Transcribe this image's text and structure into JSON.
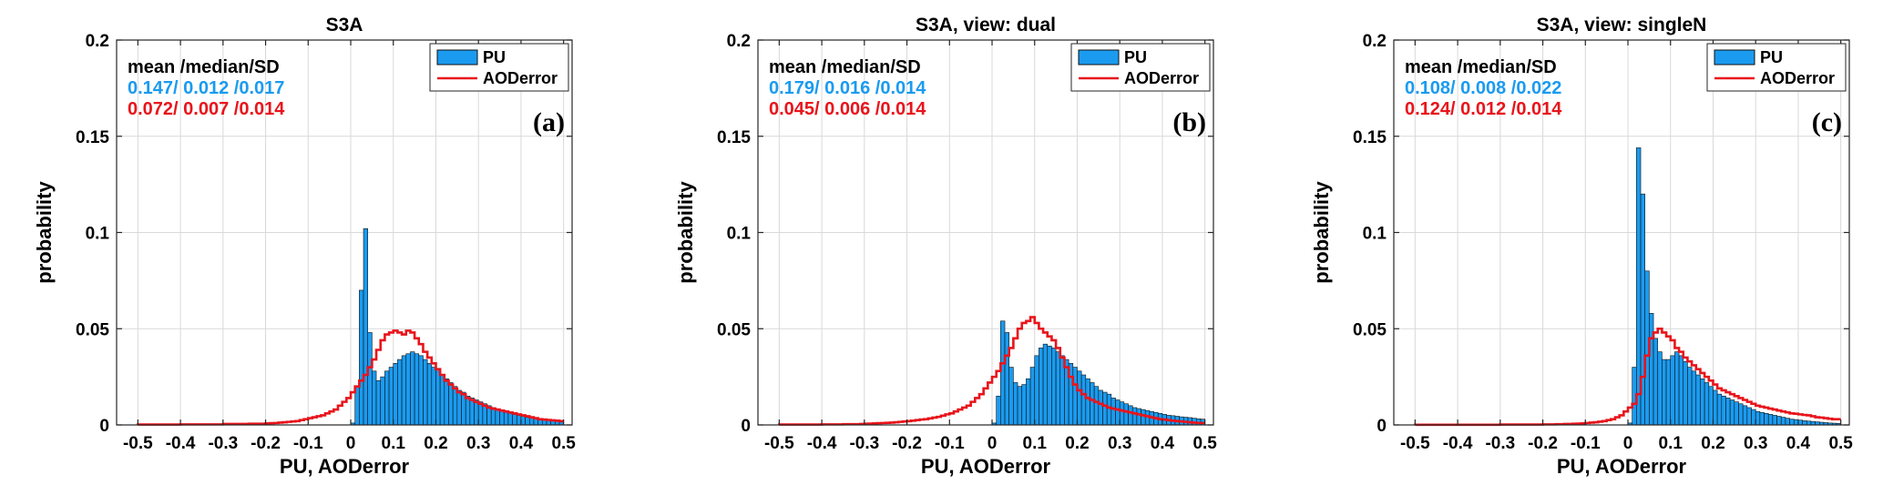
{
  "colors": {
    "pu_fill": "#1a9bf0",
    "aod_line": "#e8141b",
    "pu_stats": "#1a9bf0",
    "aod_stats": "#e8141b",
    "grid": "#d9d9d9",
    "axis": "#262626"
  },
  "chart_data": [
    {
      "type": "bar",
      "panel": "left",
      "title": "S3A",
      "xlabel": "PU, AODerror",
      "ylabel": "probability",
      "xlim": [
        -0.55,
        0.52
      ],
      "ylim": [
        0,
        0.2
      ],
      "xticks": [
        -0.5,
        -0.4,
        -0.3,
        -0.2,
        -0.1,
        0,
        0.1,
        0.2,
        0.3,
        0.4,
        0.5
      ],
      "xtick_labels": [
        "-0.5",
        "-0.4",
        "-0.3",
        "-0.2",
        "-0.1",
        "0",
        "0.1",
        "0.2",
        "0.3",
        "0.4",
        "0.5"
      ],
      "yticks": [
        0,
        0.05,
        0.1,
        0.15,
        0.2
      ],
      "ytick_labels": [
        "0",
        "0.05",
        "0.1",
        "0.15",
        "0.2"
      ],
      "grid": true,
      "legend_position": "top-right",
      "panel_label": "(a)",
      "stats_header": "mean /median/SD",
      "stats_pu": "0.147/  0.012  /0.017",
      "stats_aod": "0.072/  0.007  /0.014",
      "series": [
        {
          "name": "PU",
          "kind": "histogram-filled",
          "color": "#1a9bf0",
          "bin_start": 0.0,
          "bin_width": 0.01,
          "values": [
            0.001,
            0.02,
            0.07,
            0.102,
            0.048,
            0.028,
            0.023,
            0.025,
            0.028,
            0.03,
            0.032,
            0.034,
            0.036,
            0.037,
            0.038,
            0.037,
            0.036,
            0.034,
            0.032,
            0.03,
            0.028,
            0.026,
            0.024,
            0.022,
            0.02,
            0.018,
            0.017,
            0.015,
            0.014,
            0.013,
            0.012,
            0.011,
            0.01,
            0.009,
            0.008,
            0.007,
            0.0065,
            0.006,
            0.0055,
            0.005,
            0.0045,
            0.004,
            0.0037,
            0.0034,
            0.003,
            0.0028,
            0.0025,
            0.0022,
            0.002,
            0.0015
          ]
        },
        {
          "name": "AODerror",
          "kind": "histogram-step",
          "color": "#e8141b",
          "bin_start": -0.5,
          "bin_width": 0.01,
          "values": [
            0.0002,
            0.0002,
            0.0002,
            0.0002,
            0.0002,
            0.0002,
            0.0002,
            0.0002,
            0.0002,
            0.0002,
            0.0003,
            0.0003,
            0.0003,
            0.0003,
            0.0003,
            0.0003,
            0.0003,
            0.0003,
            0.0003,
            0.0003,
            0.0005,
            0.0005,
            0.0005,
            0.0005,
            0.0005,
            0.0005,
            0.0006,
            0.0006,
            0.0006,
            0.0006,
            0.0008,
            0.0009,
            0.001,
            0.0012,
            0.0014,
            0.0016,
            0.0018,
            0.002,
            0.0025,
            0.003,
            0.0035,
            0.004,
            0.0045,
            0.005,
            0.006,
            0.007,
            0.008,
            0.01,
            0.012,
            0.014,
            0.017,
            0.02,
            0.023,
            0.026,
            0.03,
            0.034,
            0.039,
            0.044,
            0.047,
            0.048,
            0.049,
            0.048,
            0.047,
            0.049,
            0.048,
            0.045,
            0.042,
            0.038,
            0.035,
            0.032,
            0.029,
            0.026,
            0.023,
            0.021,
            0.019,
            0.017,
            0.016,
            0.014,
            0.013,
            0.012,
            0.011,
            0.01,
            0.009,
            0.0085,
            0.008,
            0.0075,
            0.007,
            0.0065,
            0.006,
            0.0055,
            0.005,
            0.0045,
            0.004,
            0.0035,
            0.003,
            0.0028,
            0.0026,
            0.0024,
            0.0022,
            0.002
          ]
        }
      ]
    },
    {
      "type": "bar",
      "panel": "middle",
      "title": "S3A, view: dual",
      "xlabel": "PU, AODerror",
      "ylabel": "probability",
      "xlim": [
        -0.55,
        0.52
      ],
      "ylim": [
        0,
        0.2
      ],
      "xticks": [
        -0.5,
        -0.4,
        -0.3,
        -0.2,
        -0.1,
        0,
        0.1,
        0.2,
        0.3,
        0.4,
        0.5
      ],
      "xtick_labels": [
        "-0.5",
        "-0.4",
        "-0.3",
        "-0.2",
        "-0.1",
        "0",
        "0.1",
        "0.2",
        "0.3",
        "0.4",
        "0.5"
      ],
      "yticks": [
        0,
        0.05,
        0.1,
        0.15,
        0.2
      ],
      "ytick_labels": [
        "0",
        "0.05",
        "0.1",
        "0.15",
        "0.2"
      ],
      "grid": true,
      "legend_position": "top-right",
      "panel_label": "(b)",
      "stats_header": "mean /median/SD",
      "stats_pu": "0.179/  0.016  /0.014",
      "stats_aod": "0.045/  0.006  /0.014",
      "series": [
        {
          "name": "PU",
          "kind": "histogram-filled",
          "color": "#1a9bf0",
          "bin_start": 0.0,
          "bin_width": 0.01,
          "values": [
            0.001,
            0.015,
            0.054,
            0.048,
            0.03,
            0.022,
            0.02,
            0.021,
            0.024,
            0.03,
            0.036,
            0.04,
            0.042,
            0.041,
            0.04,
            0.038,
            0.036,
            0.034,
            0.032,
            0.03,
            0.028,
            0.026,
            0.024,
            0.022,
            0.02,
            0.018,
            0.017,
            0.016,
            0.014,
            0.013,
            0.012,
            0.011,
            0.01,
            0.009,
            0.0085,
            0.008,
            0.0075,
            0.007,
            0.0065,
            0.006,
            0.0055,
            0.005,
            0.0048,
            0.0045,
            0.0042,
            0.004,
            0.0038,
            0.0035,
            0.0032,
            0.003
          ]
        },
        {
          "name": "AODerror",
          "kind": "histogram-step",
          "color": "#e8141b",
          "bin_start": -0.5,
          "bin_width": 0.01,
          "values": [
            0.0002,
            0.0002,
            0.0002,
            0.0002,
            0.0002,
            0.0002,
            0.0002,
            0.0002,
            0.0002,
            0.0002,
            0.0003,
            0.0003,
            0.0003,
            0.0003,
            0.0003,
            0.0004,
            0.0004,
            0.0004,
            0.0004,
            0.0005,
            0.0006,
            0.0007,
            0.0008,
            0.0009,
            0.001,
            0.0011,
            0.0012,
            0.0014,
            0.0016,
            0.0018,
            0.002,
            0.0022,
            0.0025,
            0.0028,
            0.003,
            0.0034,
            0.0038,
            0.0042,
            0.0048,
            0.0055,
            0.006,
            0.007,
            0.008,
            0.009,
            0.01,
            0.012,
            0.014,
            0.016,
            0.019,
            0.022,
            0.025,
            0.028,
            0.032,
            0.036,
            0.04,
            0.045,
            0.05,
            0.053,
            0.054,
            0.056,
            0.053,
            0.05,
            0.048,
            0.046,
            0.044,
            0.04,
            0.035,
            0.03,
            0.025,
            0.021,
            0.018,
            0.016,
            0.014,
            0.013,
            0.012,
            0.011,
            0.01,
            0.009,
            0.0085,
            0.008,
            0.0075,
            0.007,
            0.0065,
            0.006,
            0.0055,
            0.005,
            0.0045,
            0.004,
            0.0035,
            0.003,
            0.0028,
            0.0025,
            0.0022,
            0.002,
            0.0018,
            0.0016,
            0.0014,
            0.0012,
            0.001,
            0.001
          ]
        }
      ]
    },
    {
      "type": "bar",
      "panel": "right",
      "title": "S3A, view: singleN",
      "xlabel": "PU, AODerror",
      "ylabel": "probability",
      "xlim": [
        -0.55,
        0.52
      ],
      "ylim": [
        0,
        0.2
      ],
      "xticks": [
        -0.5,
        -0.4,
        -0.3,
        -0.2,
        -0.1,
        0,
        0.1,
        0.2,
        0.3,
        0.4,
        0.5
      ],
      "xtick_labels": [
        "-0.5",
        "-0.4",
        "-0.3",
        "-0.2",
        "-0.1",
        "0",
        "0.1",
        "0.2",
        "0.3",
        "0.4",
        "0.5"
      ],
      "yticks": [
        0,
        0.05,
        0.1,
        0.15,
        0.2
      ],
      "ytick_labels": [
        "0",
        "0.05",
        "0.1",
        "0.15",
        "0.2"
      ],
      "grid": true,
      "legend_position": "top-right",
      "panel_label": "(c)",
      "stats_header": "mean /median/SD",
      "stats_pu": "0.108/  0.008  /0.022",
      "stats_aod": "0.124/  0.012  /0.014",
      "series": [
        {
          "name": "PU",
          "kind": "histogram-filled",
          "color": "#1a9bf0",
          "bin_start": 0.0,
          "bin_width": 0.01,
          "values": [
            0.001,
            0.03,
            0.144,
            0.12,
            0.08,
            0.058,
            0.045,
            0.038,
            0.034,
            0.034,
            0.036,
            0.038,
            0.036,
            0.033,
            0.03,
            0.028,
            0.026,
            0.024,
            0.022,
            0.02,
            0.018,
            0.016,
            0.015,
            0.014,
            0.013,
            0.012,
            0.011,
            0.01,
            0.009,
            0.008,
            0.007,
            0.0065,
            0.006,
            0.0055,
            0.005,
            0.0045,
            0.004,
            0.0035,
            0.003,
            0.0028,
            0.0025,
            0.0022,
            0.002,
            0.0018,
            0.0016,
            0.0014,
            0.0012,
            0.001,
            0.0009,
            0.0008
          ]
        },
        {
          "name": "AODerror",
          "kind": "histogram-step",
          "color": "#e8141b",
          "bin_start": -0.5,
          "bin_width": 0.01,
          "values": [
            0.0001,
            0.0001,
            0.0001,
            0.0001,
            0.0001,
            0.0001,
            0.0001,
            0.0001,
            0.0001,
            0.0001,
            0.0001,
            0.0001,
            0.0001,
            0.0001,
            0.0001,
            0.0001,
            0.0001,
            0.0001,
            0.0001,
            0.0001,
            0.0002,
            0.0002,
            0.0002,
            0.0002,
            0.0002,
            0.0002,
            0.0002,
            0.0002,
            0.0002,
            0.0002,
            0.0003,
            0.0003,
            0.0003,
            0.0004,
            0.0004,
            0.0005,
            0.0005,
            0.0006,
            0.0007,
            0.0008,
            0.001,
            0.0012,
            0.0014,
            0.0017,
            0.002,
            0.0025,
            0.003,
            0.004,
            0.005,
            0.007,
            0.009,
            0.011,
            0.016,
            0.025,
            0.036,
            0.045,
            0.048,
            0.05,
            0.048,
            0.046,
            0.044,
            0.04,
            0.038,
            0.035,
            0.033,
            0.031,
            0.029,
            0.027,
            0.025,
            0.023,
            0.021,
            0.019,
            0.018,
            0.017,
            0.016,
            0.015,
            0.014,
            0.013,
            0.012,
            0.011,
            0.01,
            0.0095,
            0.009,
            0.0085,
            0.008,
            0.0075,
            0.007,
            0.0065,
            0.006,
            0.0058,
            0.0055,
            0.0052,
            0.005,
            0.0045,
            0.004,
            0.0038,
            0.0035,
            0.0032,
            0.003,
            0.003
          ]
        }
      ]
    }
  ]
}
